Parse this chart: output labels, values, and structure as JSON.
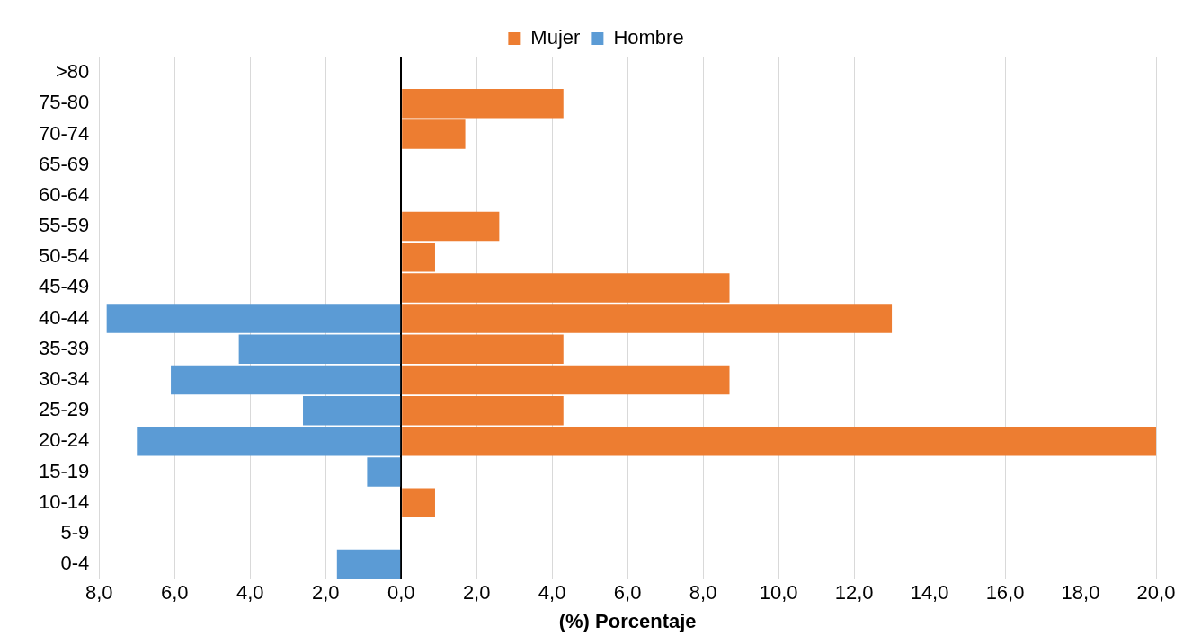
{
  "chart_data": {
    "type": "bar",
    "orientation": "horizontal",
    "stacked": true,
    "xlabel": "(%) Porcentaje",
    "categories": [
      ">80",
      "75-80",
      "70-74",
      "65-69",
      "60-64",
      "55-59",
      "50-54",
      "45-49",
      "40-44",
      "35-39",
      "30-34",
      "25-29",
      "20-24",
      "15-19",
      "10-14",
      "5-9",
      "0-4"
    ],
    "series": [
      {
        "name": "Mujer",
        "color": "#ed7d31",
        "values": [
          null,
          4.3,
          1.7,
          null,
          null,
          2.6,
          0.9,
          8.7,
          13.0,
          4.3,
          8.7,
          4.3,
          20.0,
          null,
          0.9,
          null,
          null
        ]
      },
      {
        "name": "Hombre",
        "color": "#5b9bd5",
        "values": [
          null,
          null,
          null,
          null,
          null,
          null,
          null,
          null,
          -7.8,
          -4.3,
          -6.1,
          -2.6,
          -7.0,
          -0.9,
          null,
          null,
          -1.7
        ]
      }
    ],
    "xlim": [
      -8,
      20
    ],
    "xticks": [
      {
        "value": -8,
        "label": "8,0"
      },
      {
        "value": -6,
        "label": "6,0"
      },
      {
        "value": -4,
        "label": "4,0"
      },
      {
        "value": -2,
        "label": "2,0"
      },
      {
        "value": 0,
        "label": "0,0"
      },
      {
        "value": 2,
        "label": "2,0"
      },
      {
        "value": 4,
        "label": "4,0"
      },
      {
        "value": 6,
        "label": "6,0"
      },
      {
        "value": 8,
        "label": "8,0"
      },
      {
        "value": 10,
        "label": "10,0"
      },
      {
        "value": 12,
        "label": "12,0"
      },
      {
        "value": 14,
        "label": "14,0"
      },
      {
        "value": 16,
        "label": "16,0"
      },
      {
        "value": 18,
        "label": "18,0"
      },
      {
        "value": 20,
        "label": "20,0"
      }
    ],
    "grid": "x",
    "legend": "top"
  }
}
